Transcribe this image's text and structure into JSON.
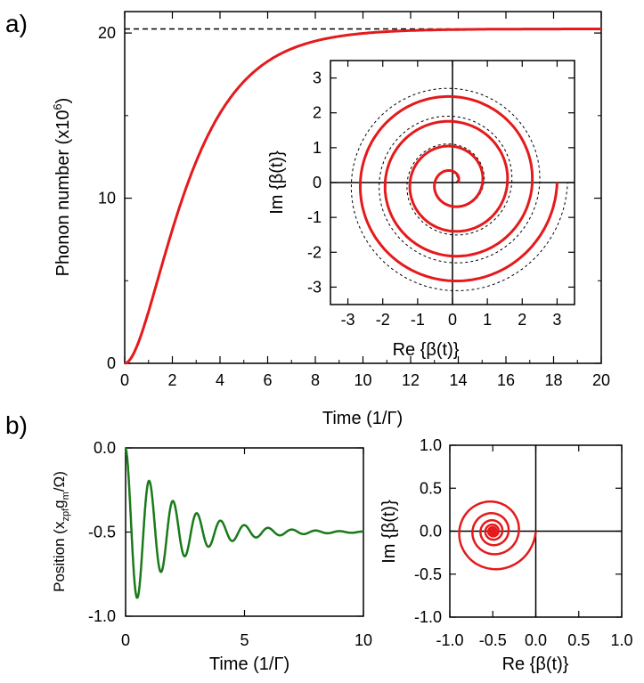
{
  "colors": {
    "red": "#e41a1c",
    "green": "#1a7a1a",
    "axis": "#000000"
  },
  "panels": {
    "a": "a)",
    "b": "b)"
  },
  "chart_data": [
    {
      "id": "a_main",
      "type": "line",
      "xlabel": "Time (1/Γ)",
      "ylabel_main": "Phonon number (x10",
      "ylabel_sup": "6",
      "ylabel_close": ")",
      "xlim": [
        0,
        20
      ],
      "ylim": [
        0,
        21.3
      ],
      "xticks": [
        "0",
        "2",
        "4",
        "6",
        "8",
        "10",
        "12",
        "14",
        "16",
        "18",
        "20"
      ],
      "yticks": [
        "0",
        "10",
        "20"
      ],
      "asymptote": 20.25,
      "series": [
        {
          "name": "Phonon number",
          "model": "20.25*(1-exp(-t/2))^2"
        }
      ]
    },
    {
      "id": "a_inset",
      "type": "line",
      "xlabel": "Re {β(t)}",
      "ylabel": "Im {β(t)}",
      "xlim": [
        -3.5,
        3.5
      ],
      "ylim": [
        -3.5,
        3.5
      ],
      "xticks": [
        "-3",
        "-2",
        "-1",
        "0",
        "1",
        "2",
        "3"
      ],
      "yticks": [
        "3",
        "2",
        "1",
        "0",
        "-1",
        "-2",
        "-3"
      ],
      "series": [
        {
          "name": "spiral (solid)",
          "start_radius": 0.15,
          "end_radius": 3.0,
          "turns": 4
        },
        {
          "name": "spiral (dashed)",
          "start_radius": 0.1,
          "end_radius": 3.3,
          "turns": 4
        }
      ]
    },
    {
      "id": "b_left",
      "type": "line",
      "xlabel": "Time (1/Γ)",
      "ylabel": "Position (x",
      "ylabel_sub1": "zpf",
      "ylabel_mid": "g",
      "ylabel_sub2": "m",
      "ylabel_end": "/Ω)",
      "xlim": [
        0,
        10
      ],
      "ylim": [
        -1.0,
        0.0
      ],
      "xticks": [
        "0",
        "5",
        "10"
      ],
      "yticks": [
        "0.0",
        "-0.5",
        "-1.0"
      ],
      "series": [
        {
          "name": "Position",
          "model": "-0.5 + 0.5*exp(-t/2)*cos(2*pi*t)"
        }
      ]
    },
    {
      "id": "b_right",
      "type": "line",
      "xlabel": "Re {β(t)}",
      "ylabel": "Im {β(t)}",
      "xlim": [
        -1.0,
        1.0
      ],
      "ylim": [
        -1.0,
        1.0
      ],
      "xticks": [
        "-1.0",
        "-0.5",
        "0.0",
        "0.5",
        "1.0"
      ],
      "yticks": [
        "1.0",
        "0.5",
        "0.0",
        "-0.5",
        "-1.0"
      ],
      "series": [
        {
          "name": "spiral",
          "center": [
            -0.5,
            0.0
          ],
          "start_radius": 0.5,
          "decay": 0.5
        }
      ]
    }
  ]
}
